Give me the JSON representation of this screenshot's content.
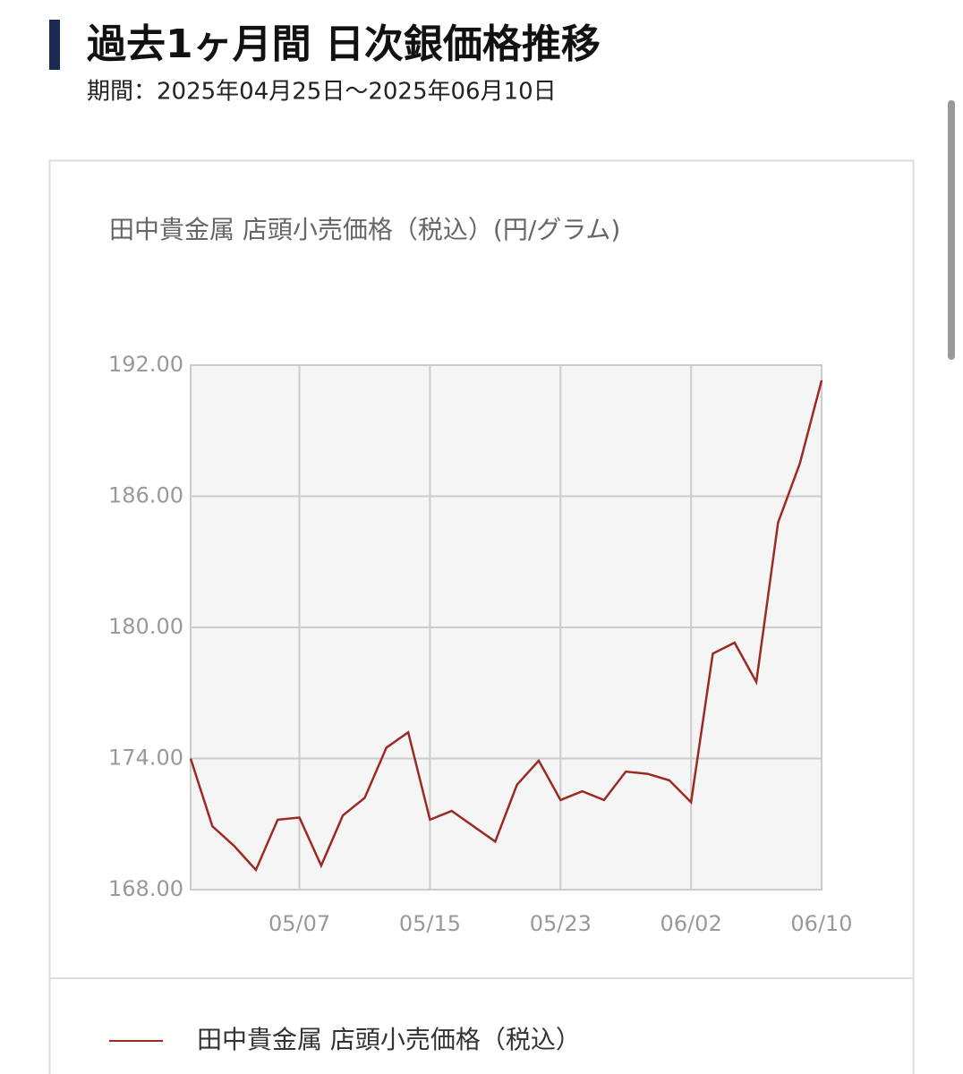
{
  "header": {
    "title": "過去1ヶ月間 日次銀価格推移",
    "period": "期間：2025年04月25日〜2025年06月10日"
  },
  "chart_data": {
    "type": "line",
    "title": "田中貴金属 店頭小売価格（税込）(円/グラム)",
    "categories": [
      null,
      null,
      null,
      null,
      null,
      "05/07",
      null,
      null,
      null,
      null,
      null,
      "05/15",
      null,
      null,
      null,
      null,
      null,
      "05/23",
      null,
      null,
      null,
      null,
      null,
      "06/02",
      null,
      null,
      null,
      null,
      null,
      "06/10"
    ],
    "series": [
      {
        "name": "田中貴金属 店頭小売価格（税込）",
        "color": "#9b2a24",
        "values": [
          174.0,
          170.9,
          170.0,
          168.9,
          171.2,
          171.3,
          169.1,
          171.4,
          172.2,
          174.5,
          175.2,
          171.2,
          171.6,
          170.9,
          170.2,
          172.8,
          173.9,
          172.1,
          172.5,
          172.1,
          173.4,
          173.3,
          173.0,
          172.0,
          178.8,
          179.3,
          177.5,
          184.8,
          187.5,
          191.3
        ]
      }
    ],
    "ylim": [
      168,
      192
    ],
    "yticks": [
      {
        "value": 168,
        "label": "168.00"
      },
      {
        "value": 174,
        "label": "174.00"
      },
      {
        "value": 180,
        "label": "180.00"
      },
      {
        "value": 186,
        "label": "186.00"
      },
      {
        "value": 192,
        "label": "192.00"
      }
    ],
    "grid": true
  }
}
